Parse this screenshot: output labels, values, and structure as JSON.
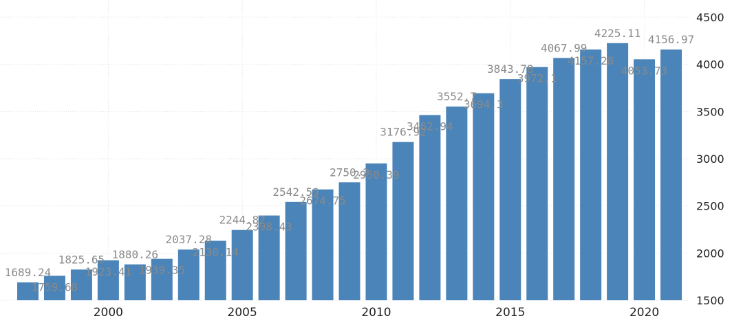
{
  "chart_data": {
    "type": "bar",
    "title": "",
    "xlabel": "",
    "ylabel": "",
    "categories": [
      "1997",
      "1998",
      "1999",
      "2000",
      "2001",
      "2002",
      "2003",
      "2004",
      "2005",
      "2006",
      "2007",
      "2008",
      "2009",
      "2010",
      "2011",
      "2012",
      "2013",
      "2014",
      "2015",
      "2016",
      "2017",
      "2018",
      "2019",
      "2020",
      "2021"
    ],
    "values": [
      1689.24,
      1759.68,
      1825.65,
      1923.41,
      1880.26,
      1939.35,
      2037.28,
      2130.14,
      2244.82,
      2398.43,
      2542.59,
      2674.75,
      2750.2,
      2950.39,
      3176.92,
      3462.94,
      3552.7,
      3694.3,
      3843.78,
      3972.1,
      4067.99,
      4157.28,
      4225.11,
      4053.73,
      4156.97
    ],
    "data_labels": [
      "1689.24",
      "1759.68",
      "1825.65",
      "1923.41",
      "1880.26",
      "1939.35",
      "2037.28",
      "2130.14",
      "2244.82",
      "2398.43",
      "2542.59",
      "2674.75",
      "2750.2",
      "2950.39",
      "3176.92",
      "3462.94",
      "3552.7",
      "3694.3",
      "3843.78",
      "3972.1",
      "4067.99",
      "4157.28",
      "4225.11",
      "4053.73",
      "4156.97"
    ],
    "x_ticks": [
      "2000",
      "2005",
      "2010",
      "2015",
      "2020"
    ],
    "y_ticks": [
      "1500",
      "2000",
      "2500",
      "3000",
      "3500",
      "4000",
      "4500"
    ],
    "ylim": [
      1500,
      4500
    ],
    "grid": true,
    "y_axis_side": "right",
    "colors": {
      "bar": "#4a84b9",
      "data_label": "#8a8a8a",
      "grid": "#e3e3e3"
    }
  }
}
